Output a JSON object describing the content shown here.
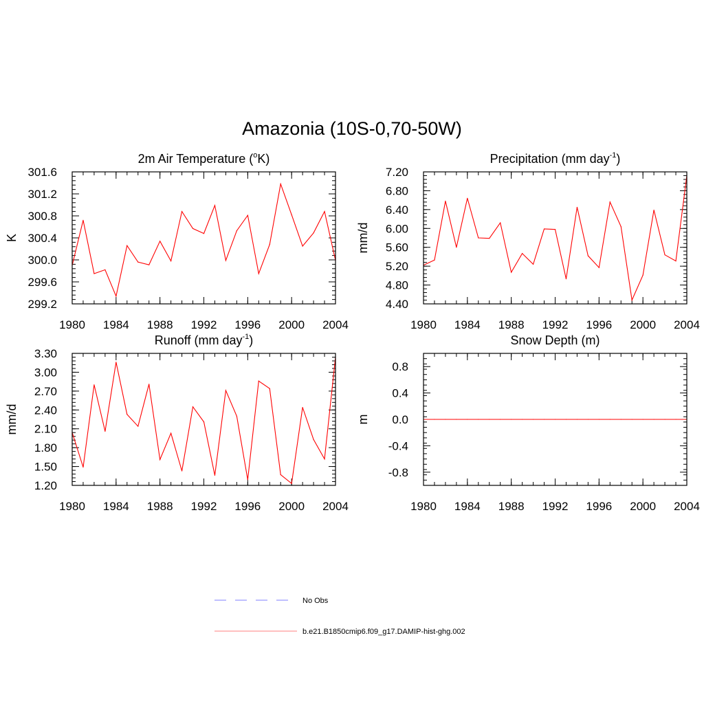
{
  "title": "Amazonia (10S-0,70-50W)",
  "chart_data": [
    {
      "type": "line",
      "title": "2m Air Temperature (",
      "title_sup": "o",
      "title_tail": "K)",
      "ylabel": "K",
      "xlim": [
        1980,
        2004
      ],
      "ylim": [
        299.2,
        301.6
      ],
      "xticks": [
        "1980",
        "1984",
        "1988",
        "1992",
        "1996",
        "2000",
        "2004"
      ],
      "yticks": [
        "299.2",
        "299.6",
        "300.0",
        "300.4",
        "300.8",
        "301.2",
        "301.6"
      ],
      "x": [
        1980,
        1981,
        1982,
        1983,
        1984,
        1985,
        1986,
        1987,
        1988,
        1989,
        1990,
        1991,
        1992,
        1993,
        1994,
        1995,
        1996,
        1997,
        1998,
        1999,
        2000,
        2001,
        2002,
        2003,
        2004
      ],
      "series": [
        {
          "color": "#ff0000",
          "values": [
            299.9,
            300.72,
            299.75,
            299.82,
            299.34,
            300.26,
            299.96,
            299.91,
            300.34,
            299.98,
            300.88,
            300.57,
            300.48,
            300.99,
            299.99,
            300.53,
            300.81,
            299.75,
            300.28,
            301.38,
            300.82,
            300.25,
            300.49,
            300.88,
            299.99
          ]
        }
      ]
    },
    {
      "type": "line",
      "title": "Precipitation (mm day",
      "title_sup": "-1",
      "title_tail": ")",
      "ylabel": "mm/d",
      "xlim": [
        1980,
        2004
      ],
      "ylim": [
        4.4,
        7.2
      ],
      "xticks": [
        "1980",
        "1984",
        "1988",
        "1992",
        "1996",
        "2000",
        "2004"
      ],
      "yticks": [
        "4.40",
        "4.80",
        "5.20",
        "5.60",
        "6.00",
        "6.40",
        "6.80",
        "7.20"
      ],
      "x": [
        1980,
        1981,
        1982,
        1983,
        1984,
        1985,
        1986,
        1987,
        1988,
        1989,
        1990,
        1991,
        1992,
        1993,
        1994,
        1995,
        1996,
        1997,
        1998,
        1999,
        2000,
        2001,
        2002,
        2003,
        2004
      ],
      "series": [
        {
          "color": "#ff0000",
          "values": [
            5.22,
            5.33,
            6.58,
            5.6,
            6.64,
            5.8,
            5.79,
            6.12,
            5.07,
            5.47,
            5.24,
            5.99,
            5.98,
            4.93,
            6.45,
            5.42,
            5.17,
            6.56,
            6.04,
            4.48,
            5.01,
            6.39,
            5.44,
            5.31,
            7.12
          ]
        }
      ]
    },
    {
      "type": "line",
      "title": "Runoff (mm day",
      "title_sup": "-1",
      "title_tail": ")",
      "ylabel": "mm/d",
      "xlim": [
        1980,
        2004
      ],
      "ylim": [
        1.2,
        3.3
      ],
      "xticks": [
        "1980",
        "1984",
        "1988",
        "1992",
        "1996",
        "2000",
        "2004"
      ],
      "yticks": [
        "1.20",
        "1.50",
        "1.80",
        "2.10",
        "2.40",
        "2.70",
        "3.00",
        "3.30"
      ],
      "x": [
        1980,
        1981,
        1982,
        1983,
        1984,
        1985,
        1986,
        1987,
        1988,
        1989,
        1990,
        1991,
        1992,
        1993,
        1994,
        1995,
        1996,
        1997,
        1998,
        1999,
        2000,
        2001,
        2002,
        2003,
        2004
      ],
      "series": [
        {
          "color": "#ff0000",
          "values": [
            2.04,
            1.49,
            2.8,
            2.06,
            3.16,
            2.33,
            2.14,
            2.81,
            1.61,
            2.03,
            1.43,
            2.45,
            2.21,
            1.36,
            2.71,
            2.3,
            1.29,
            2.86,
            2.74,
            1.37,
            1.23,
            2.44,
            1.93,
            1.62,
            3.24
          ]
        }
      ]
    },
    {
      "type": "line",
      "title": "Snow Depth (m)",
      "title_sup": "",
      "title_tail": "",
      "ylabel": "m",
      "xlim": [
        1980,
        2004
      ],
      "ylim": [
        -1.0,
        1.0
      ],
      "xticks": [
        "1980",
        "1984",
        "1988",
        "1992",
        "1996",
        "2000",
        "2004"
      ],
      "yticks": [
        "-0.8",
        "-0.4",
        "0.0",
        "0.4",
        "0.8"
      ],
      "x": [
        1980,
        1981,
        1982,
        1983,
        1984,
        1985,
        1986,
        1987,
        1988,
        1989,
        1990,
        1991,
        1992,
        1993,
        1994,
        1995,
        1996,
        1997,
        1998,
        1999,
        2000,
        2001,
        2002,
        2003,
        2004
      ],
      "series": [
        {
          "color": "#ff0000",
          "values": [
            0,
            0,
            0,
            0,
            0,
            0,
            0,
            0,
            0,
            0,
            0,
            0,
            0,
            0,
            0,
            0,
            0,
            0,
            0,
            0,
            0,
            0,
            0,
            0,
            0
          ]
        }
      ]
    }
  ],
  "legend": [
    {
      "label": "No Obs",
      "color": "#9999ff",
      "style": "dashed"
    },
    {
      "label": "b.e21.B1850cmip6.f09_g17.DAMIP-hist-ghg.002",
      "color": "#ff9999",
      "style": "solid"
    }
  ]
}
